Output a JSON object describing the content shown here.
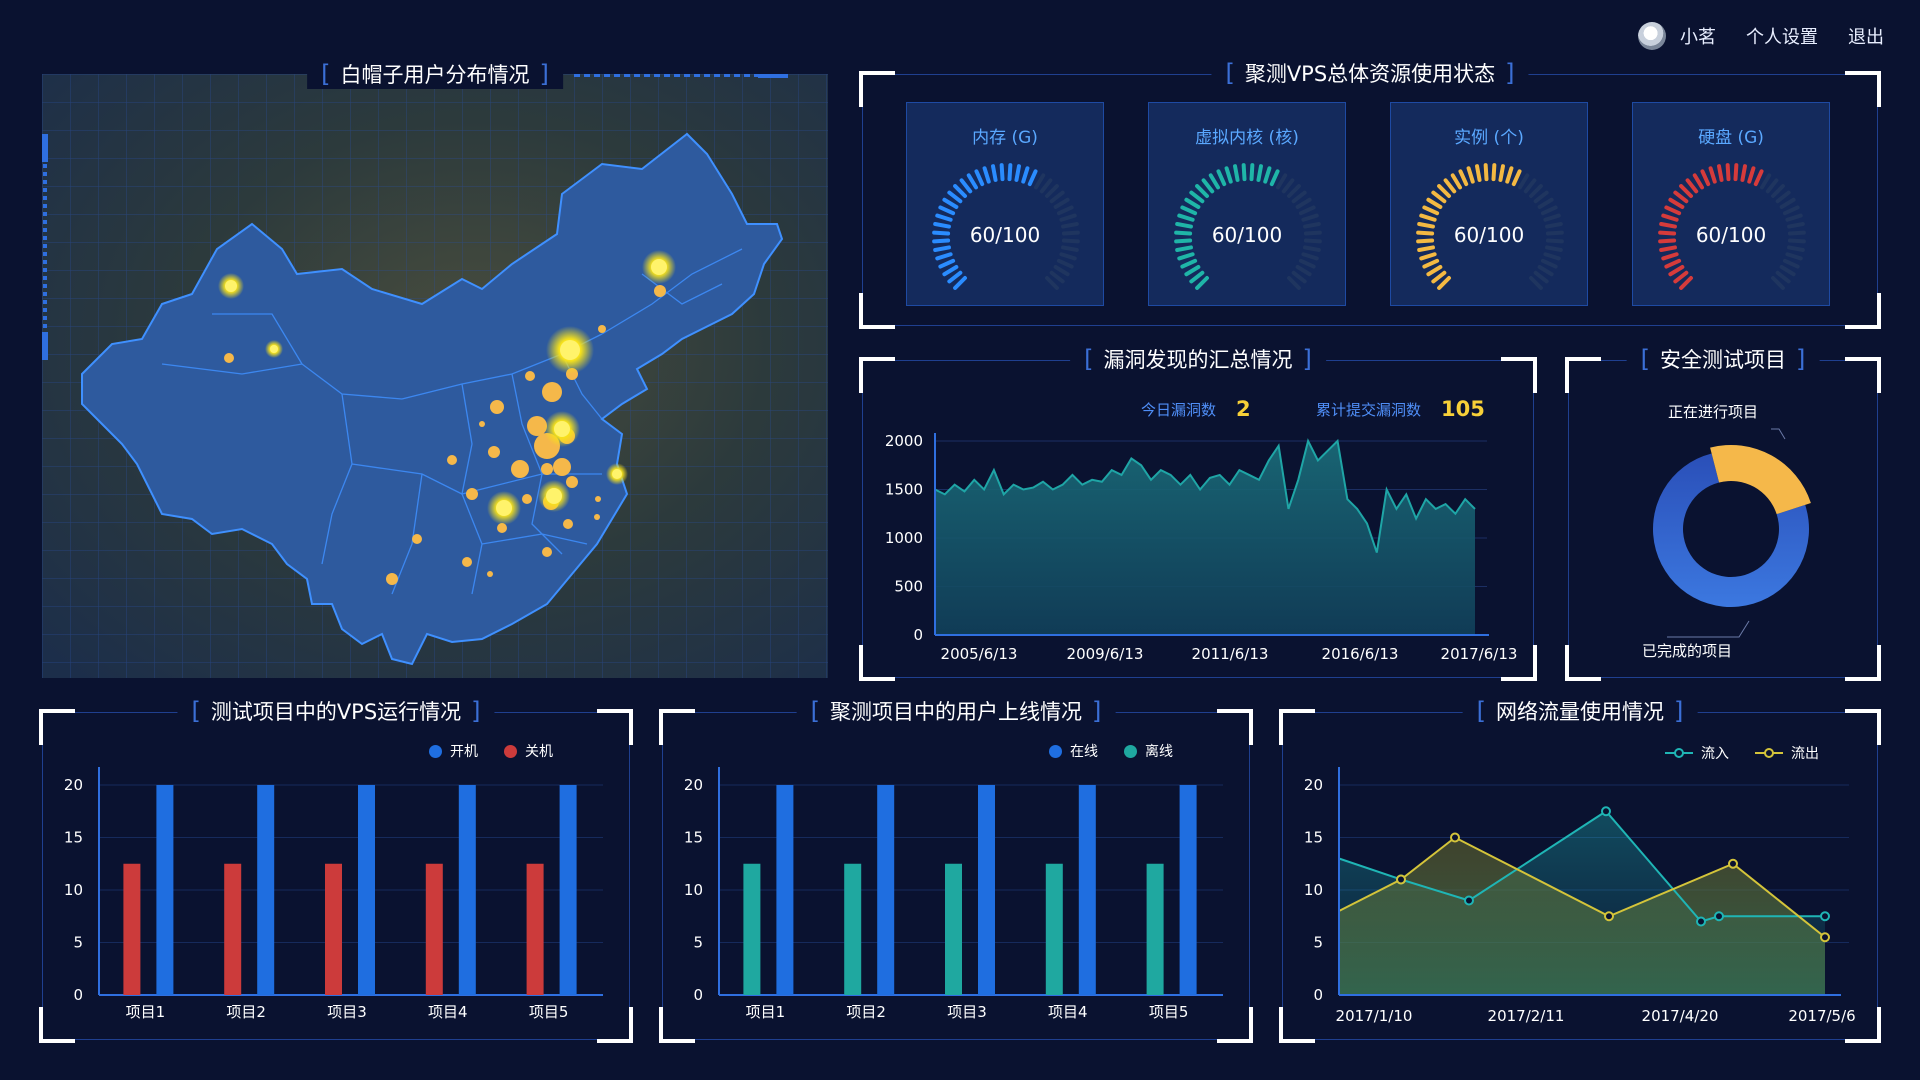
{
  "topbar": {
    "username": "小茗",
    "settings": "个人设置",
    "logout": "退出"
  },
  "map_panel": {
    "title": "白帽子用户分布情况",
    "hotspots": [
      {
        "city": "Beijing",
        "level": "major"
      },
      {
        "city": "Shijiazhuang",
        "level": "major"
      },
      {
        "city": "Harbin",
        "level": "major"
      },
      {
        "city": "Chengdu",
        "level": "major"
      },
      {
        "city": "Wuhan",
        "level": "major"
      },
      {
        "city": "Urumqi",
        "level": "medium"
      },
      {
        "city": "Shanghai",
        "level": "medium"
      }
    ]
  },
  "resources": {
    "title": "聚测VPS总体资源使用状态",
    "gauges": [
      {
        "label": "内存 (G)",
        "value": "60/100",
        "fraction": 0.6,
        "color": "#2a8cff"
      },
      {
        "label": "虚拟内核 (核)",
        "value": "60/100",
        "fraction": 0.6,
        "color": "#1fb5a8"
      },
      {
        "label": "实例 (个)",
        "value": "60/100",
        "fraction": 0.6,
        "color": "#f4b942"
      },
      {
        "label": "硬盘 (G)",
        "value": "60/100",
        "fraction": 0.6,
        "color": "#d63b3b"
      }
    ]
  },
  "vuln": {
    "title": "漏洞发现的汇总情况",
    "today_label": "今日漏洞数",
    "today_value": "2",
    "total_label": "累计提交漏洞数",
    "total_value": "105"
  },
  "security": {
    "title": "安全测试项目",
    "in_progress_label": "正在进行项目",
    "completed_label": "已完成的项目",
    "colors": {
      "completed": "#2f63d9",
      "in_progress": "#f5b84a"
    }
  },
  "vps_run": {
    "title": "测试项目中的VPS运行情况",
    "legend": [
      "开机",
      "关机"
    ]
  },
  "users_online": {
    "title": "聚测项目中的用户上线情况",
    "legend": [
      "在线",
      "离线"
    ]
  },
  "traffic": {
    "title": "网络流量使用情况",
    "legend": [
      "流入",
      "流出"
    ]
  },
  "chart_data": [
    {
      "id": "vuln_area",
      "type": "area",
      "x_ticks": [
        "2005/6/13",
        "2009/6/13",
        "2011/6/13",
        "2016/6/13",
        "2017/6/13"
      ],
      "y_ticks": [
        0,
        500,
        1000,
        1500,
        2000
      ],
      "ylim": [
        0,
        2000
      ],
      "values": [
        1500,
        1450,
        1550,
        1480,
        1600,
        1500,
        1700,
        1450,
        1550,
        1500,
        1520,
        1580,
        1500,
        1550,
        1650,
        1550,
        1600,
        1580,
        1700,
        1650,
        1820,
        1750,
        1600,
        1700,
        1650,
        1550,
        1650,
        1500,
        1620,
        1650,
        1550,
        1700,
        1650,
        1600,
        1800,
        1950,
        1300,
        1600,
        2000,
        1800,
        1900,
        2000,
        1400,
        1300,
        1150,
        850,
        1500,
        1300,
        1450,
        1200,
        1400,
        1300,
        1350,
        1250,
        1400,
        1300
      ],
      "color": "#1fa5a6"
    },
    {
      "id": "security_donut",
      "type": "pie",
      "categories": [
        "已完成的项目",
        "正在进行项目"
      ],
      "values": [
        76,
        24
      ]
    },
    {
      "id": "vps_bar",
      "type": "bar",
      "categories": [
        "项目1",
        "项目2",
        "项目3",
        "项目4",
        "项目5"
      ],
      "y_ticks": [
        0,
        5,
        10,
        15,
        20
      ],
      "ylim": [
        0,
        20
      ],
      "series": [
        {
          "name": "关机",
          "values": [
            12.5,
            12.5,
            12.5,
            12.5,
            12.5
          ],
          "color": "#cc3b3b"
        },
        {
          "name": "开机",
          "values": [
            20,
            20,
            20,
            20,
            20
          ],
          "color": "#1f6ee0"
        }
      ]
    },
    {
      "id": "users_bar",
      "type": "bar",
      "categories": [
        "项目1",
        "项目2",
        "项目3",
        "项目4",
        "项目5"
      ],
      "y_ticks": [
        0,
        5,
        10,
        15,
        20
      ],
      "ylim": [
        0,
        20
      ],
      "series": [
        {
          "name": "离线",
          "values": [
            12.5,
            12.5,
            12.5,
            12.5,
            12.5
          ],
          "color": "#1fa8a0"
        },
        {
          "name": "在线",
          "values": [
            20,
            20,
            20,
            20,
            20
          ],
          "color": "#1f6ee0"
        }
      ]
    },
    {
      "id": "traffic_line",
      "type": "line",
      "x_ticks": [
        "2017/1/10",
        "2017/2/11",
        "2017/4/20",
        "2017/5/6"
      ],
      "y_ticks": [
        0,
        5,
        10,
        15,
        20
      ],
      "ylim": [
        0,
        20
      ],
      "series": [
        {
          "name": "流入",
          "values": [
            13,
            11,
            9,
            17.5,
            7,
            7.5,
            7.5
          ],
          "color": "#1fb5b5"
        },
        {
          "name": "流出",
          "values": [
            8,
            11,
            15,
            7.5,
            12.5,
            5.5
          ],
          "color": "#d4c43a"
        }
      ]
    }
  ]
}
